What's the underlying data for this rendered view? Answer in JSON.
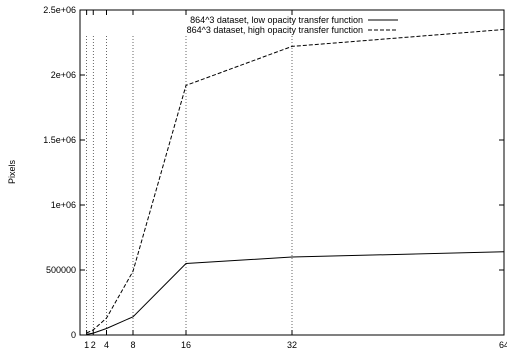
{
  "chart_data": {
    "type": "line",
    "title": "",
    "xlabel": "",
    "ylabel": "Pixels",
    "xlim": [
      0,
      64
    ],
    "ylim": [
      0,
      2500000
    ],
    "x_ticks": [
      1,
      2,
      4,
      8,
      16,
      32,
      64
    ],
    "x_tick_labels": [
      "1",
      "2",
      "4",
      "8",
      "16",
      "32",
      "64"
    ],
    "y_ticks": [
      0,
      500000,
      1000000,
      1500000,
      2000000,
      2500000
    ],
    "y_tick_labels": [
      "0",
      "500000",
      "1e+06",
      "1.5e+06",
      "2e+06",
      "2.5e+06"
    ],
    "grid": "vertical dotted lines at x = 1, 2, 4, 8, 16, 32",
    "legend_position": "top-right",
    "series": [
      {
        "name": "864^3 dataset, low opacity transfer function",
        "style": "solid",
        "color": "#000000",
        "x": [
          1,
          2,
          4,
          8,
          16,
          32,
          64
        ],
        "y": [
          5000,
          15000,
          50000,
          140000,
          550000,
          600000,
          640000
        ]
      },
      {
        "name": "864^3 dataset, high opacity transfer function",
        "style": "dashed",
        "color": "#000000",
        "x": [
          1,
          2,
          4,
          8,
          16,
          32,
          64
        ],
        "y": [
          15000,
          40000,
          130000,
          490000,
          1920000,
          2220000,
          2350000
        ]
      }
    ]
  }
}
